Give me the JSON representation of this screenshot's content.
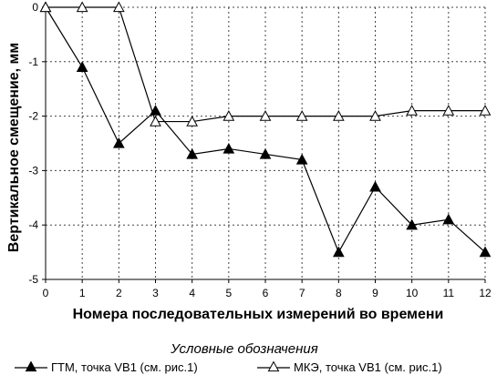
{
  "chart_data": {
    "type": "line",
    "xlabel": "Номера последовательных измерений во времени",
    "ylabel": "Вертикальное смещение, мм",
    "x": [
      0,
      1,
      2,
      3,
      4,
      5,
      6,
      7,
      8,
      9,
      10,
      11,
      12
    ],
    "xlim": [
      0,
      12
    ],
    "ylim": [
      -5,
      0
    ],
    "xticks": [
      "0",
      "1",
      "2",
      "3",
      "4",
      "5",
      "6",
      "7",
      "8",
      "9",
      "10",
      "11",
      "12"
    ],
    "yticks": [
      "0",
      "-1",
      "-2",
      "-3",
      "-4",
      "-5"
    ],
    "grid": "dashed vertical and horizontal",
    "legend_title": "Условные обозначения",
    "legend_placement": "bottom",
    "series": [
      {
        "name": "ГТМ, точка VB1 (см. рис.1)",
        "marker": "filled-triangle",
        "color": "#000000",
        "values": [
          0,
          -1.1,
          -2.5,
          -1.9,
          -2.7,
          -2.6,
          -2.7,
          -2.8,
          -4.5,
          -3.3,
          -4.0,
          -3.9,
          -4.5
        ]
      },
      {
        "name": "МКЭ, точка VB1 (см. рис.1)",
        "marker": "open-triangle",
        "color": "#000000",
        "values": [
          0,
          0,
          0,
          -2.1,
          -2.1,
          -2.0,
          -2.0,
          -2.0,
          -2.0,
          -2.0,
          -1.9,
          -1.9,
          -1.9
        ]
      }
    ]
  }
}
